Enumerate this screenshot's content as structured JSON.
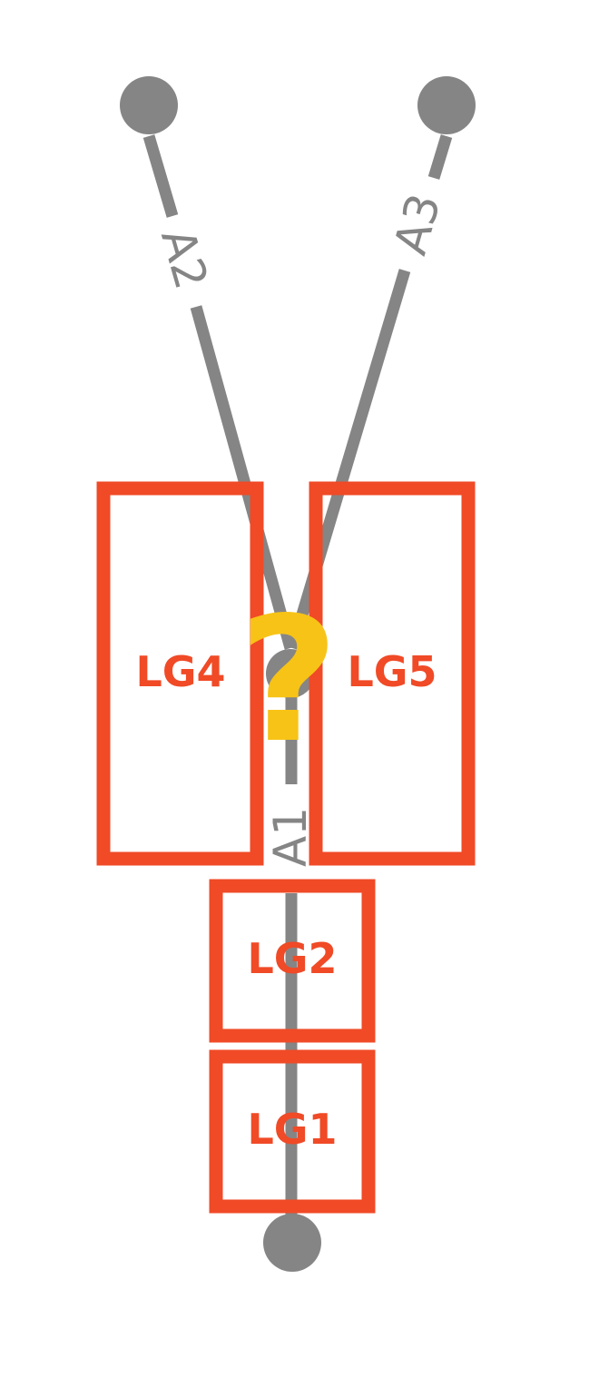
{
  "colors": {
    "road": "#858585",
    "box": "#f04a27",
    "question": "#f7c316",
    "background": "#ffffff"
  },
  "lanes": {
    "a1": "A1",
    "a2": "A2",
    "a3": "A3"
  },
  "lane_groups": {
    "lg1": "LG1",
    "lg2": "LG2",
    "lg4": "LG4",
    "lg5": "LG5"
  },
  "question_mark": "?"
}
